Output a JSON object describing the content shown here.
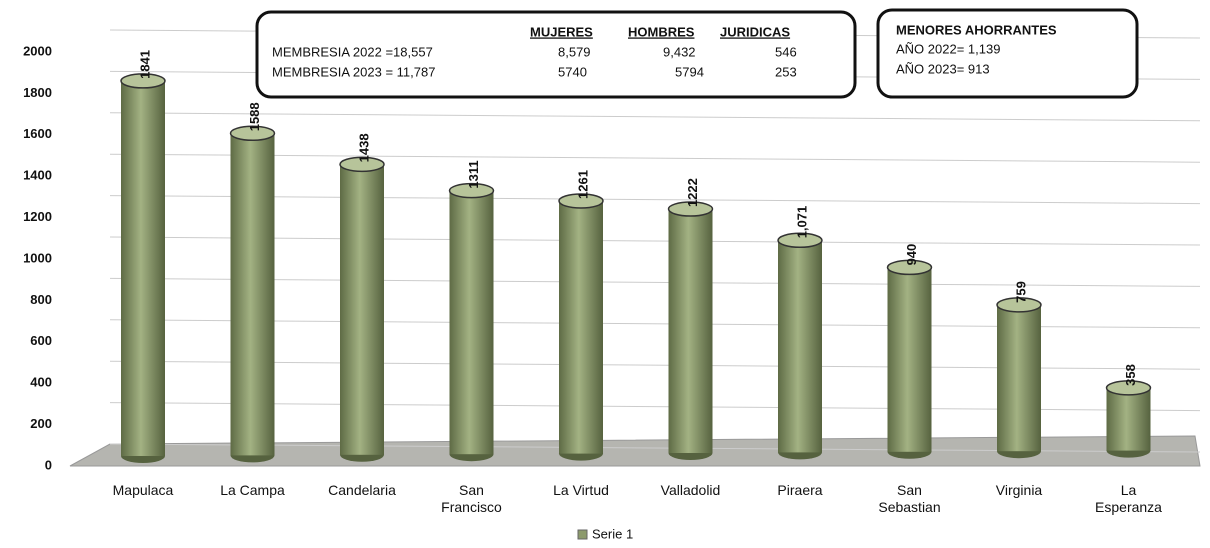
{
  "chart_data": {
    "type": "bar",
    "categories": [
      "Mapulaca",
      "La Campa",
      "Candelaria",
      "San Francisco",
      "La Virtud",
      "Valladolid",
      "Piraera",
      "San Sebastian",
      "Virginia",
      "La Esperanza"
    ],
    "series": [
      {
        "name": "Serie 1",
        "color": "#8c9a6c",
        "values": [
          1841,
          1588,
          1438,
          1311,
          1261,
          1222,
          1071,
          940,
          759,
          358
        ],
        "value_labels": [
          "1841",
          "1588",
          "1438",
          "1311",
          "1261",
          "1222",
          "1,071",
          "940",
          "759",
          "358"
        ]
      }
    ],
    "ylim": [
      0,
      2000
    ],
    "yticks": [
      0,
      200,
      400,
      600,
      800,
      1000,
      1200,
      1400,
      1600,
      1800,
      2000
    ],
    "grid": true,
    "legend": "bottom",
    "annotations": {
      "membership": {
        "headers": [
          "MUJERES",
          "HOMBRES",
          "JURIDICAS"
        ],
        "rows": [
          {
            "label": "MEMBRESIA 2022 =18,557",
            "values": [
              "8,579",
              "9,432",
              "546"
            ]
          },
          {
            "label": "MEMBRESIA 2023 = 11,787",
            "values": [
              "5740",
              "5794",
              "253"
            ]
          }
        ]
      },
      "minors": {
        "title": "MENORES AHORRANTES",
        "lines": [
          "AÑO 2022= 1,139",
          "AÑO 2023= 913"
        ]
      }
    }
  }
}
